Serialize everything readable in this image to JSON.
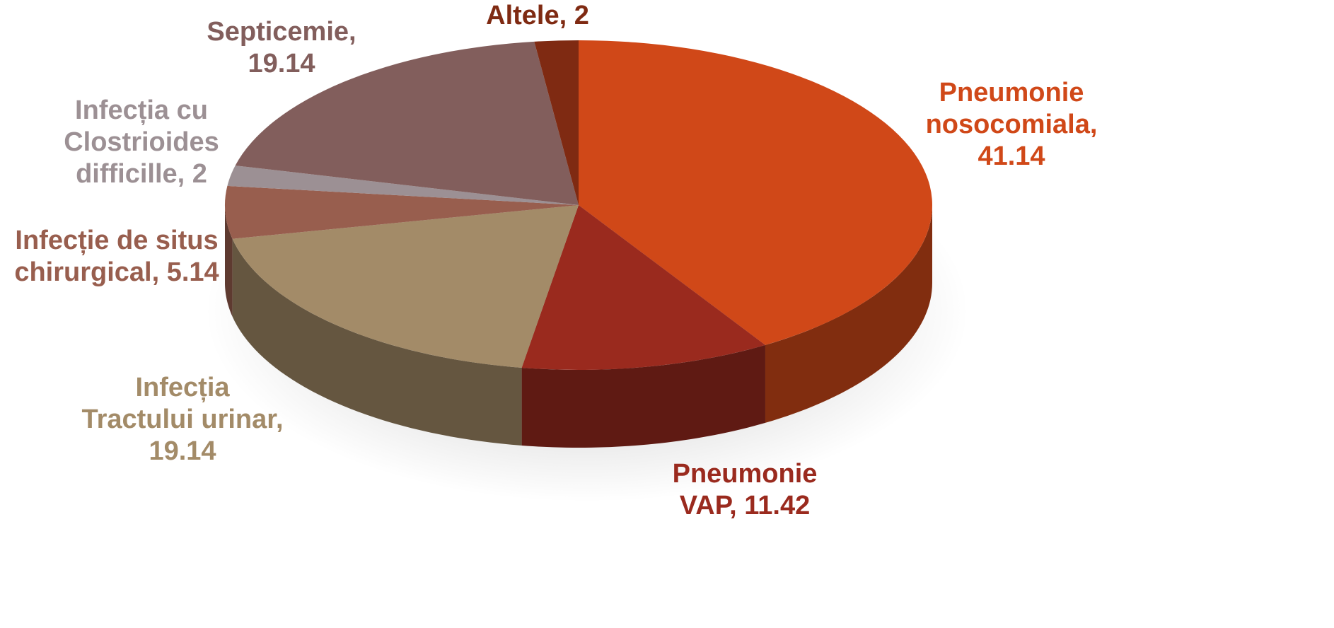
{
  "chart_data": {
    "type": "pie3d",
    "values": [
      41.14,
      11.42,
      19.14,
      5.14,
      2,
      19.14,
      2
    ],
    "value_labels": [
      "Pneumonie\nnosocomiala,\n41.14",
      "Pneumonie\nVAP, 11.42",
      "Infecția\nTractului urinar,\n19.14",
      "Infecție de situs\nchirurgical, 5.14",
      "Infecția cu\nClostrioides\ndifficille, 2",
      "Septicemie,\n19.14",
      "Altele, 2"
    ],
    "colors": [
      "#d04818",
      "#9a2a1e",
      "#a38b68",
      "#985e4e",
      "#9c9094",
      "#825e5c",
      "#7f2a12"
    ]
  }
}
